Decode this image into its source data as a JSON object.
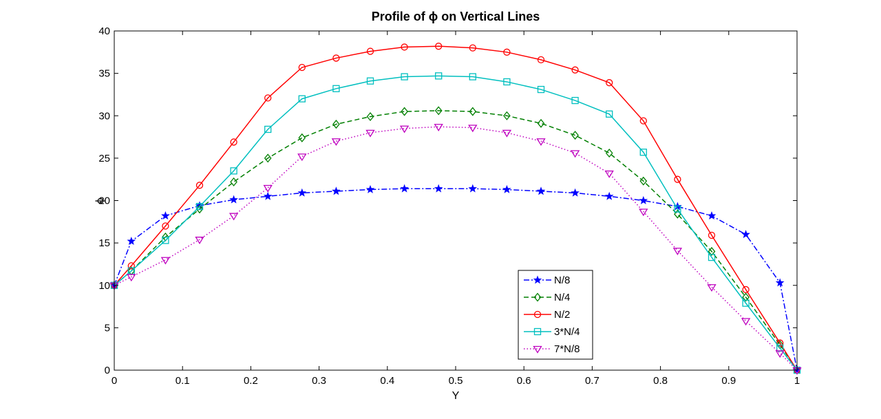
{
  "chart_data": {
    "type": "line",
    "title": "Profile of ϕ on Vertical Lines",
    "xlabel": "Y",
    "ylabel": "ϕ",
    "xlim": [
      0,
      1
    ],
    "ylim": [
      0,
      40
    ],
    "xticks": [
      "0",
      "0.1",
      "0.2",
      "0.3",
      "0.4",
      "0.5",
      "0.6",
      "0.7",
      "0.8",
      "0.9",
      "1"
    ],
    "yticks": [
      "0",
      "5",
      "10",
      "15",
      "20",
      "25",
      "30",
      "35",
      "40"
    ],
    "grid": false,
    "legend_position": "lower-center",
    "x": [
      0,
      0.025,
      0.075,
      0.125,
      0.175,
      0.225,
      0.275,
      0.325,
      0.375,
      0.425,
      0.475,
      0.525,
      0.575,
      0.625,
      0.675,
      0.725,
      0.775,
      0.825,
      0.875,
      0.925,
      0.975,
      1
    ],
    "series": [
      {
        "name": "N/8",
        "color": "#0000ff",
        "line_style": "dash-dot",
        "marker": "star",
        "values": [
          10.0,
          15.2,
          18.2,
          19.4,
          20.1,
          20.5,
          20.9,
          21.1,
          21.3,
          21.4,
          21.4,
          21.4,
          21.3,
          21.1,
          20.9,
          20.5,
          20.0,
          19.3,
          18.2,
          16.0,
          10.3,
          0
        ]
      },
      {
        "name": "N/4",
        "color": "#007f00",
        "line_style": "dashed",
        "marker": "diamond",
        "values": [
          10.0,
          11.7,
          15.7,
          19.0,
          22.2,
          25.0,
          27.4,
          29.0,
          29.9,
          30.5,
          30.6,
          30.5,
          30.0,
          29.1,
          27.7,
          25.6,
          22.3,
          18.4,
          14.0,
          8.6,
          3.0,
          0
        ]
      },
      {
        "name": "N/2",
        "color": "#ff0000",
        "line_style": "solid",
        "marker": "circle",
        "values": [
          10.0,
          12.3,
          17.0,
          21.8,
          26.9,
          32.1,
          35.7,
          36.8,
          37.6,
          38.1,
          38.2,
          38.0,
          37.5,
          36.6,
          35.4,
          33.9,
          29.4,
          22.5,
          15.9,
          9.5,
          3.2,
          0
        ]
      },
      {
        "name": "3*N/4",
        "color": "#00bfbf",
        "line_style": "solid",
        "marker": "square",
        "values": [
          10.0,
          11.7,
          15.3,
          19.3,
          23.5,
          28.4,
          32.0,
          33.2,
          34.1,
          34.6,
          34.7,
          34.6,
          34.0,
          33.1,
          31.8,
          30.2,
          25.7,
          19.0,
          13.3,
          7.9,
          2.6,
          0
        ]
      },
      {
        "name": "7*N/8",
        "color": "#bf00bf",
        "line_style": "dotted",
        "marker": "triangle-down",
        "values": [
          10.0,
          11.0,
          13.0,
          15.4,
          18.2,
          21.5,
          25.2,
          27.0,
          28.0,
          28.5,
          28.7,
          28.6,
          28.0,
          27.0,
          25.6,
          23.2,
          18.7,
          14.1,
          9.8,
          5.8,
          2.0,
          0
        ]
      }
    ]
  }
}
